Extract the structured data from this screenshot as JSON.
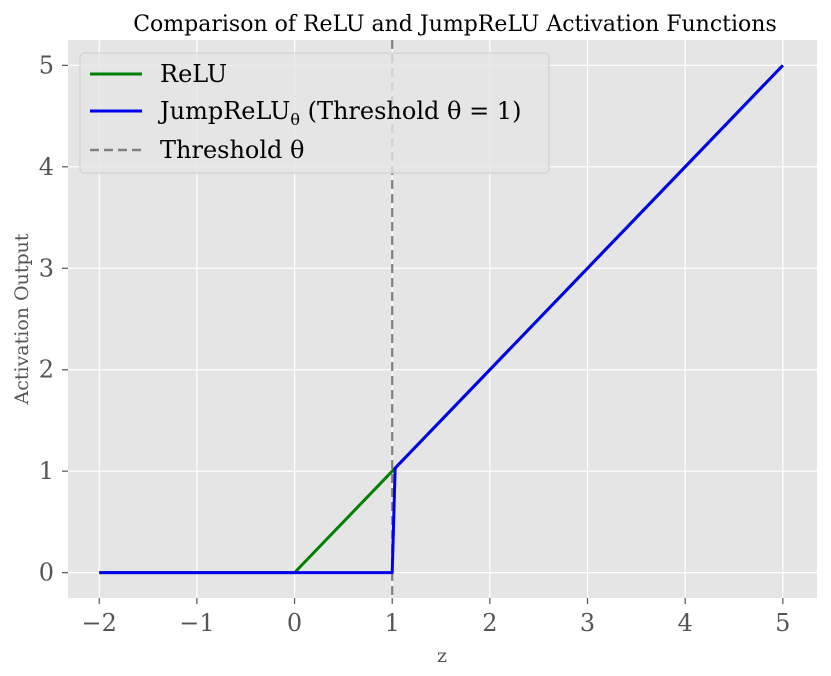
{
  "chart_data": {
    "type": "line",
    "title": "Comparison of ReLU and JumpReLU Activation Functions",
    "xlabel": "z",
    "ylabel": "Activation Output",
    "xlim": [
      -2.32,
      5.35
    ],
    "ylim": [
      -0.25,
      5.25
    ],
    "xticks": [
      -2,
      -1,
      0,
      1,
      2,
      3,
      4,
      5
    ],
    "xtick_labels": [
      "−2",
      "−1",
      "0",
      "1",
      "2",
      "3",
      "4",
      "5"
    ],
    "yticks": [
      0,
      1,
      2,
      3,
      4,
      5
    ],
    "ytick_labels": [
      "0",
      "1",
      "2",
      "3",
      "4",
      "5"
    ],
    "grid": true,
    "background": "#e5e5e5",
    "legend_position": "top-left",
    "series": [
      {
        "name": "ReLU",
        "color": "#008000",
        "style": "solid",
        "x": [
          -2,
          0,
          5
        ],
        "y": [
          0,
          0,
          5
        ]
      },
      {
        "name": "JumpReLU",
        "name_subscript": "θ",
        "name_suffix": " (Threshold θ = 1)",
        "color": "#0000ee",
        "style": "solid",
        "x": [
          -2,
          1,
          1.03,
          5
        ],
        "y": [
          0,
          0,
          1.03,
          5
        ]
      }
    ],
    "vlines": [
      {
        "name": "Threshold θ",
        "x": 1,
        "color": "#808080",
        "style": "dashed"
      }
    ]
  }
}
